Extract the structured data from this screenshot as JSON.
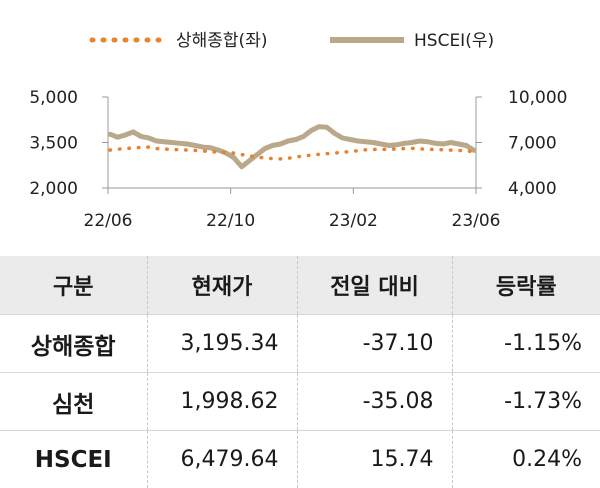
{
  "chart_data": {
    "type": "line",
    "legend_position": "top",
    "x_ticks": [
      "22/06",
      "22/10",
      "23/02",
      "23/06"
    ],
    "y_left": {
      "ticks": [
        "5,000",
        "3,500",
        "2,000"
      ],
      "tick_values": [
        5000,
        3500,
        2000
      ],
      "range": [
        2000,
        5000
      ]
    },
    "y_right": {
      "ticks": [
        "10,000",
        "7,000",
        "4,000"
      ],
      "tick_values": [
        10000,
        7000,
        4000
      ],
      "range": [
        4000,
        10000
      ]
    },
    "grid": false,
    "series": [
      {
        "name": "상해종합(좌)",
        "axis": "left",
        "color": "#e8822e",
        "style": "dotted",
        "values": [
          3250,
          3280,
          3300,
          3320,
          3340,
          3350,
          3300,
          3290,
          3260,
          3270,
          3250,
          3240,
          3220,
          3200,
          3180,
          3170,
          3150,
          3100,
          3060,
          3020,
          2990,
          2970,
          2960,
          2980,
          3020,
          3060,
          3080,
          3110,
          3130,
          3150,
          3180,
          3200,
          3230,
          3260,
          3270,
          3280,
          3270,
          3290,
          3300,
          3310,
          3290,
          3280,
          3270,
          3260,
          3250,
          3240,
          3220,
          3200
        ]
      },
      {
        "name": "HSCEI(우)",
        "axis": "right",
        "color": "#b9a88a",
        "style": "solid",
        "values": [
          7550,
          7350,
          7500,
          7700,
          7400,
          7300,
          7100,
          7050,
          7000,
          6950,
          6900,
          6800,
          6700,
          6650,
          6500,
          6300,
          6000,
          5400,
          5800,
          6200,
          6600,
          6800,
          6900,
          7100,
          7200,
          7400,
          7800,
          8050,
          8000,
          7600,
          7300,
          7200,
          7100,
          7050,
          7000,
          6900,
          6800,
          6850,
          6950,
          7000,
          7100,
          7050,
          6950,
          6900,
          7000,
          6900,
          6800,
          6480
        ]
      }
    ]
  },
  "table": {
    "headers": [
      "구분",
      "현재가",
      "전일 대비",
      "등락률"
    ],
    "rows": [
      {
        "name": "상해종합",
        "price": "3,195.34",
        "change": "-37.10",
        "rate": "-1.15%"
      },
      {
        "name": "심천",
        "price": "1,998.62",
        "change": "-35.08",
        "rate": "-1.73%"
      },
      {
        "name": "HSCEI",
        "price": "6,479.64",
        "change": "15.74",
        "rate": "0.24%"
      }
    ]
  }
}
